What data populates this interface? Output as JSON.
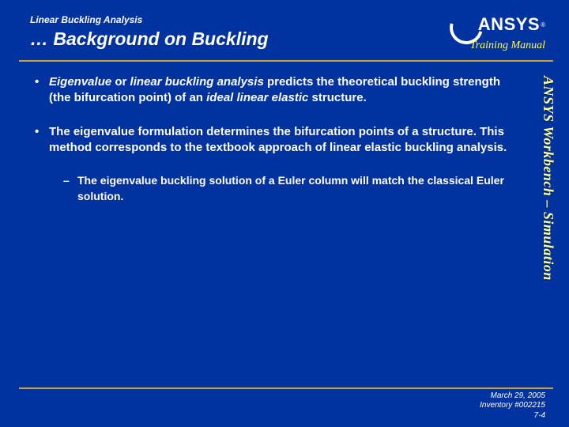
{
  "header": {
    "small": "Linear Buckling Analysis",
    "title": "… Background on Buckling"
  },
  "logo": {
    "text": "ANSYS",
    "reg": "®"
  },
  "trainingLabel": "Training Manual",
  "sideText": "ANSYS Workbench – Simulation",
  "bullets": {
    "b1_pre": "Eigenvalue",
    "b1_mid": " or ",
    "b1_i2": "linear buckling analysis",
    "b1_post1": " predicts the theoretical buckling strength (the bifurcation point) of an ",
    "b1_i3": "ideal linear elastic",
    "b1_post2": " structure.",
    "b2": "The eigenvalue formulation determines the bifurcation points of a structure.  This method corresponds to the textbook approach of linear elastic buckling analysis.",
    "sub1": "The eigenvalue buckling solution of a Euler column will match the classical Euler solution."
  },
  "footer": {
    "date": "March 29, 2005",
    "inv": "Inventory #002215",
    "page": "7-4"
  },
  "glyphs": {
    "bullet": "•",
    "dash": "–"
  }
}
